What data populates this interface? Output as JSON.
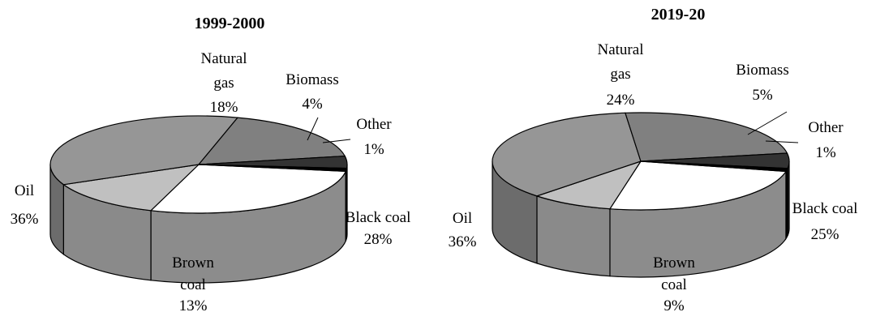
{
  "chart_data": [
    {
      "type": "pie",
      "title": "1999-2000",
      "slices": [
        {
          "label": "Black coal",
          "value": 28,
          "value_text": "28%",
          "color": "#ffffff"
        },
        {
          "label": "Brown coal",
          "value": 13,
          "value_text": "13%",
          "color": "#c0c0c0"
        },
        {
          "label": "Oil",
          "value": 36,
          "value_text": "36%",
          "color": "#969696"
        },
        {
          "label": "Natural gas",
          "value": 18,
          "value_text": "18%",
          "color": "#808080"
        },
        {
          "label": "Biomass",
          "value": 4,
          "value_text": "4%",
          "color": "#333333"
        },
        {
          "label": "Other",
          "value": 1,
          "value_text": "1%",
          "color": "#000000"
        }
      ]
    },
    {
      "type": "pie",
      "title": "2019-20",
      "slices": [
        {
          "label": "Black coal",
          "value": 25,
          "value_text": "25%",
          "color": "#ffffff"
        },
        {
          "label": "Brown coal",
          "value": 9,
          "value_text": "9%",
          "color": "#c0c0c0"
        },
        {
          "label": "Oil",
          "value": 36,
          "value_text": "36%",
          "color": "#969696"
        },
        {
          "label": "Natural gas",
          "value": 24,
          "value_text": "24%",
          "color": "#808080"
        },
        {
          "label": "Biomass",
          "value": 5,
          "value_text": "5%",
          "color": "#333333"
        },
        {
          "label": "Other",
          "value": 1,
          "value_text": "1%",
          "color": "#000000"
        }
      ]
    }
  ]
}
